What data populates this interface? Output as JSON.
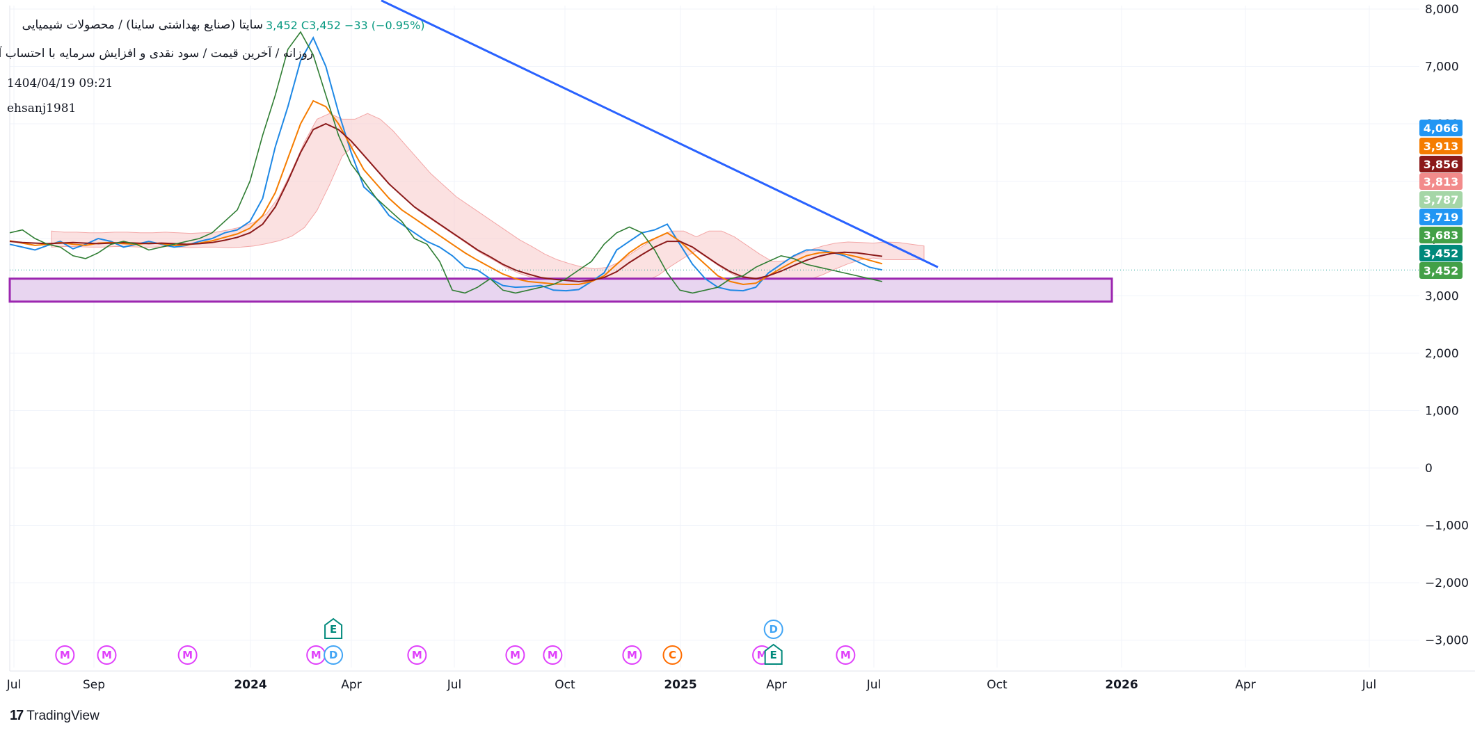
{
  "header": {
    "title": "سایتا (صنایع بهداشتی ساینا) / محصولات شیمیایی",
    "price_info": "3,452  C3,452  −33 (−0.95%)",
    "subtitle": "روزانه / آخرین قیمت / سود نقدی و افزایش سرمایه با احتساب آورده",
    "datetime": "1404/04/19 09:21",
    "author": "ehsanj1981"
  },
  "brand": {
    "name": "TradingView"
  },
  "colors": {
    "trendline": "#2962ff",
    "zone_fill": "#e8d5f0",
    "zone_stroke": "#9c27b0",
    "price_line": "#26a69a",
    "ichimoku_green": "#2e7d32",
    "ichimoku_red_cloud": "#f8c8c8",
    "ichimoku_green_cloud": "#c8e6c9",
    "ma_fast": "#1e88e5",
    "ma_slow": "#f57c00",
    "kijun": "#8b1a1a",
    "event_m": "#e040fb",
    "event_e": "#00897b",
    "event_d": "#42a5f5",
    "event_c": "#ff6d00"
  },
  "chart_data": {
    "type": "line",
    "ylim": [
      -3500,
      8000
    ],
    "y_ticks": [
      "8,000",
      "7,000",
      "6,000",
      "5,000",
      "4,000",
      "3,000",
      "2,000",
      "1,000",
      "0",
      "−1,000",
      "−2,000",
      "−3,000"
    ],
    "y_tick_values": [
      8000,
      7000,
      6000,
      5000,
      4000,
      3000,
      2000,
      1000,
      0,
      -1000,
      -2000,
      -3000
    ],
    "x_ticks": [
      {
        "label": "Jul",
        "bold": false
      },
      {
        "label": "Sep",
        "bold": false
      },
      {
        "label": "2024",
        "bold": true
      },
      {
        "label": "Apr",
        "bold": false
      },
      {
        "label": "Jul",
        "bold": false
      },
      {
        "label": "Oct",
        "bold": false
      },
      {
        "label": "2025",
        "bold": true
      },
      {
        "label": "Apr",
        "bold": false
      },
      {
        "label": "Jul",
        "bold": false
      },
      {
        "label": "Oct",
        "bold": false
      },
      {
        "label": "2026",
        "bold": true
      },
      {
        "label": "Apr",
        "bold": false
      },
      {
        "label": "Jul",
        "bold": false
      }
    ],
    "price_badges": [
      {
        "label": "4,066",
        "value": 4066,
        "color": "#2196f3"
      },
      {
        "label": "3,913",
        "value": 3913,
        "color": "#f57c00"
      },
      {
        "label": "3,856",
        "value": 3856,
        "color": "#8b1a1a"
      },
      {
        "label": "3,813",
        "value": 3813,
        "color": "#f28b8b"
      },
      {
        "label": "3,787",
        "value": 3787,
        "color": "#a5d6a7"
      },
      {
        "label": "3,719",
        "value": 3719,
        "color": "#2196f3"
      },
      {
        "label": "3,683",
        "value": 3683,
        "color": "#43a047"
      },
      {
        "label": "3,452",
        "value": 3452,
        "color": "#00897b"
      },
      {
        "label": "3,452",
        "value": 3452,
        "color": "#43a047"
      }
    ],
    "last_price": 3452,
    "support_zone": {
      "low": 2900,
      "high": 3300
    },
    "trendline": {
      "from_value": 8150,
      "to_value": 3500
    },
    "series": [
      {
        "values": [
          3900,
          3850,
          3800,
          3880,
          3950,
          3820,
          3900,
          4000,
          3950,
          3850,
          3900,
          3950,
          3900,
          3850,
          3880,
          3950,
          4000,
          4100,
          4150,
          4300,
          4700,
          5600,
          6300,
          7100,
          7500,
          7000,
          6200,
          5500,
          4900,
          4700,
          4400,
          4250,
          4100,
          3950,
          3850,
          3700,
          3500,
          3450,
          3300,
          3180,
          3150,
          3160,
          3180,
          3100,
          3090,
          3110,
          3250,
          3400,
          3800,
          3950,
          4100,
          4150,
          4250,
          3900,
          3550,
          3300,
          3150,
          3100,
          3090,
          3150,
          3400,
          3550,
          3700,
          3800,
          3800,
          3760,
          3700,
          3600,
          3500,
          3452
        ]
      },
      {
        "values": [
          3960,
          3920,
          3880,
          3900,
          3930,
          3900,
          3880,
          3920,
          3930,
          3910,
          3900,
          3920,
          3910,
          3880,
          3890,
          3920,
          3960,
          4020,
          4080,
          4180,
          4400,
          4800,
          5400,
          6000,
          6400,
          6300,
          6000,
          5600,
          5200,
          4950,
          4700,
          4500,
          4350,
          4200,
          4050,
          3900,
          3750,
          3620,
          3500,
          3380,
          3300,
          3250,
          3230,
          3210,
          3200,
          3200,
          3250,
          3350,
          3550,
          3750,
          3900,
          4000,
          4100,
          3950,
          3750,
          3550,
          3350,
          3250,
          3200,
          3220,
          3350,
          3480,
          3600,
          3700,
          3750,
          3760,
          3730,
          3680,
          3620,
          3560
        ]
      },
      {
        "values": [
          3950,
          3930,
          3920,
          3910,
          3920,
          3930,
          3920,
          3910,
          3920,
          3930,
          3920,
          3910,
          3920,
          3910,
          3900,
          3910,
          3930,
          3970,
          4020,
          4100,
          4250,
          4550,
          5000,
          5500,
          5900,
          6000,
          5900,
          5700,
          5450,
          5200,
          4950,
          4750,
          4550,
          4400,
          4250,
          4100,
          3950,
          3800,
          3680,
          3550,
          3450,
          3380,
          3320,
          3290,
          3270,
          3250,
          3270,
          3320,
          3420,
          3580,
          3720,
          3850,
          3950,
          3950,
          3850,
          3700,
          3550,
          3420,
          3330,
          3300,
          3350,
          3430,
          3530,
          3620,
          3690,
          3740,
          3760,
          3750,
          3720,
          3690
        ]
      },
      {
        "values": [
          4100,
          4150,
          4000,
          3900,
          3850,
          3700,
          3650,
          3750,
          3900,
          3950,
          3900,
          3800,
          3850,
          3900,
          3950,
          4000,
          4100,
          4300,
          4500,
          5000,
          5800,
          6500,
          7300,
          7600,
          7200,
          6500,
          5800,
          5300,
          5000,
          4700,
          4500,
          4300,
          4000,
          3900,
          3600,
          3100,
          3050,
          3150,
          3300,
          3100,
          3050,
          3100,
          3150,
          3200,
          3300,
          3450,
          3600,
          3900,
          4100,
          4200,
          4100,
          3800,
          3400,
          3100,
          3050,
          3100,
          3150,
          3300,
          3350,
          3500,
          3600,
          3700,
          3650,
          3550,
          3500,
          3450,
          3400,
          3350,
          3300,
          3250
        ]
      }
    ],
    "events": [
      {
        "label": "M",
        "row": "bottom",
        "pos": 0.018
      },
      {
        "label": "M",
        "row": "bottom",
        "pos": 0.047
      },
      {
        "label": "M",
        "row": "bottom",
        "pos": 0.103
      },
      {
        "label": "M",
        "row": "bottom",
        "pos": 0.192
      },
      {
        "label": "E",
        "row": "top",
        "pos": 0.204
      },
      {
        "label": "D",
        "row": "bottom",
        "pos": 0.204
      },
      {
        "label": "M",
        "row": "bottom",
        "pos": 0.262
      },
      {
        "label": "M",
        "row": "bottom",
        "pos": 0.33
      },
      {
        "label": "M",
        "row": "bottom",
        "pos": 0.356
      },
      {
        "label": "M",
        "row": "bottom",
        "pos": 0.411
      },
      {
        "label": "C",
        "row": "bottom",
        "pos": 0.439
      },
      {
        "label": "M",
        "row": "bottom",
        "pos": 0.501
      },
      {
        "label": "D",
        "row": "top",
        "pos": 0.509
      },
      {
        "label": "E",
        "row": "bottom",
        "pos": 0.509
      },
      {
        "label": "M",
        "row": "bottom",
        "pos": 0.559
      }
    ]
  }
}
